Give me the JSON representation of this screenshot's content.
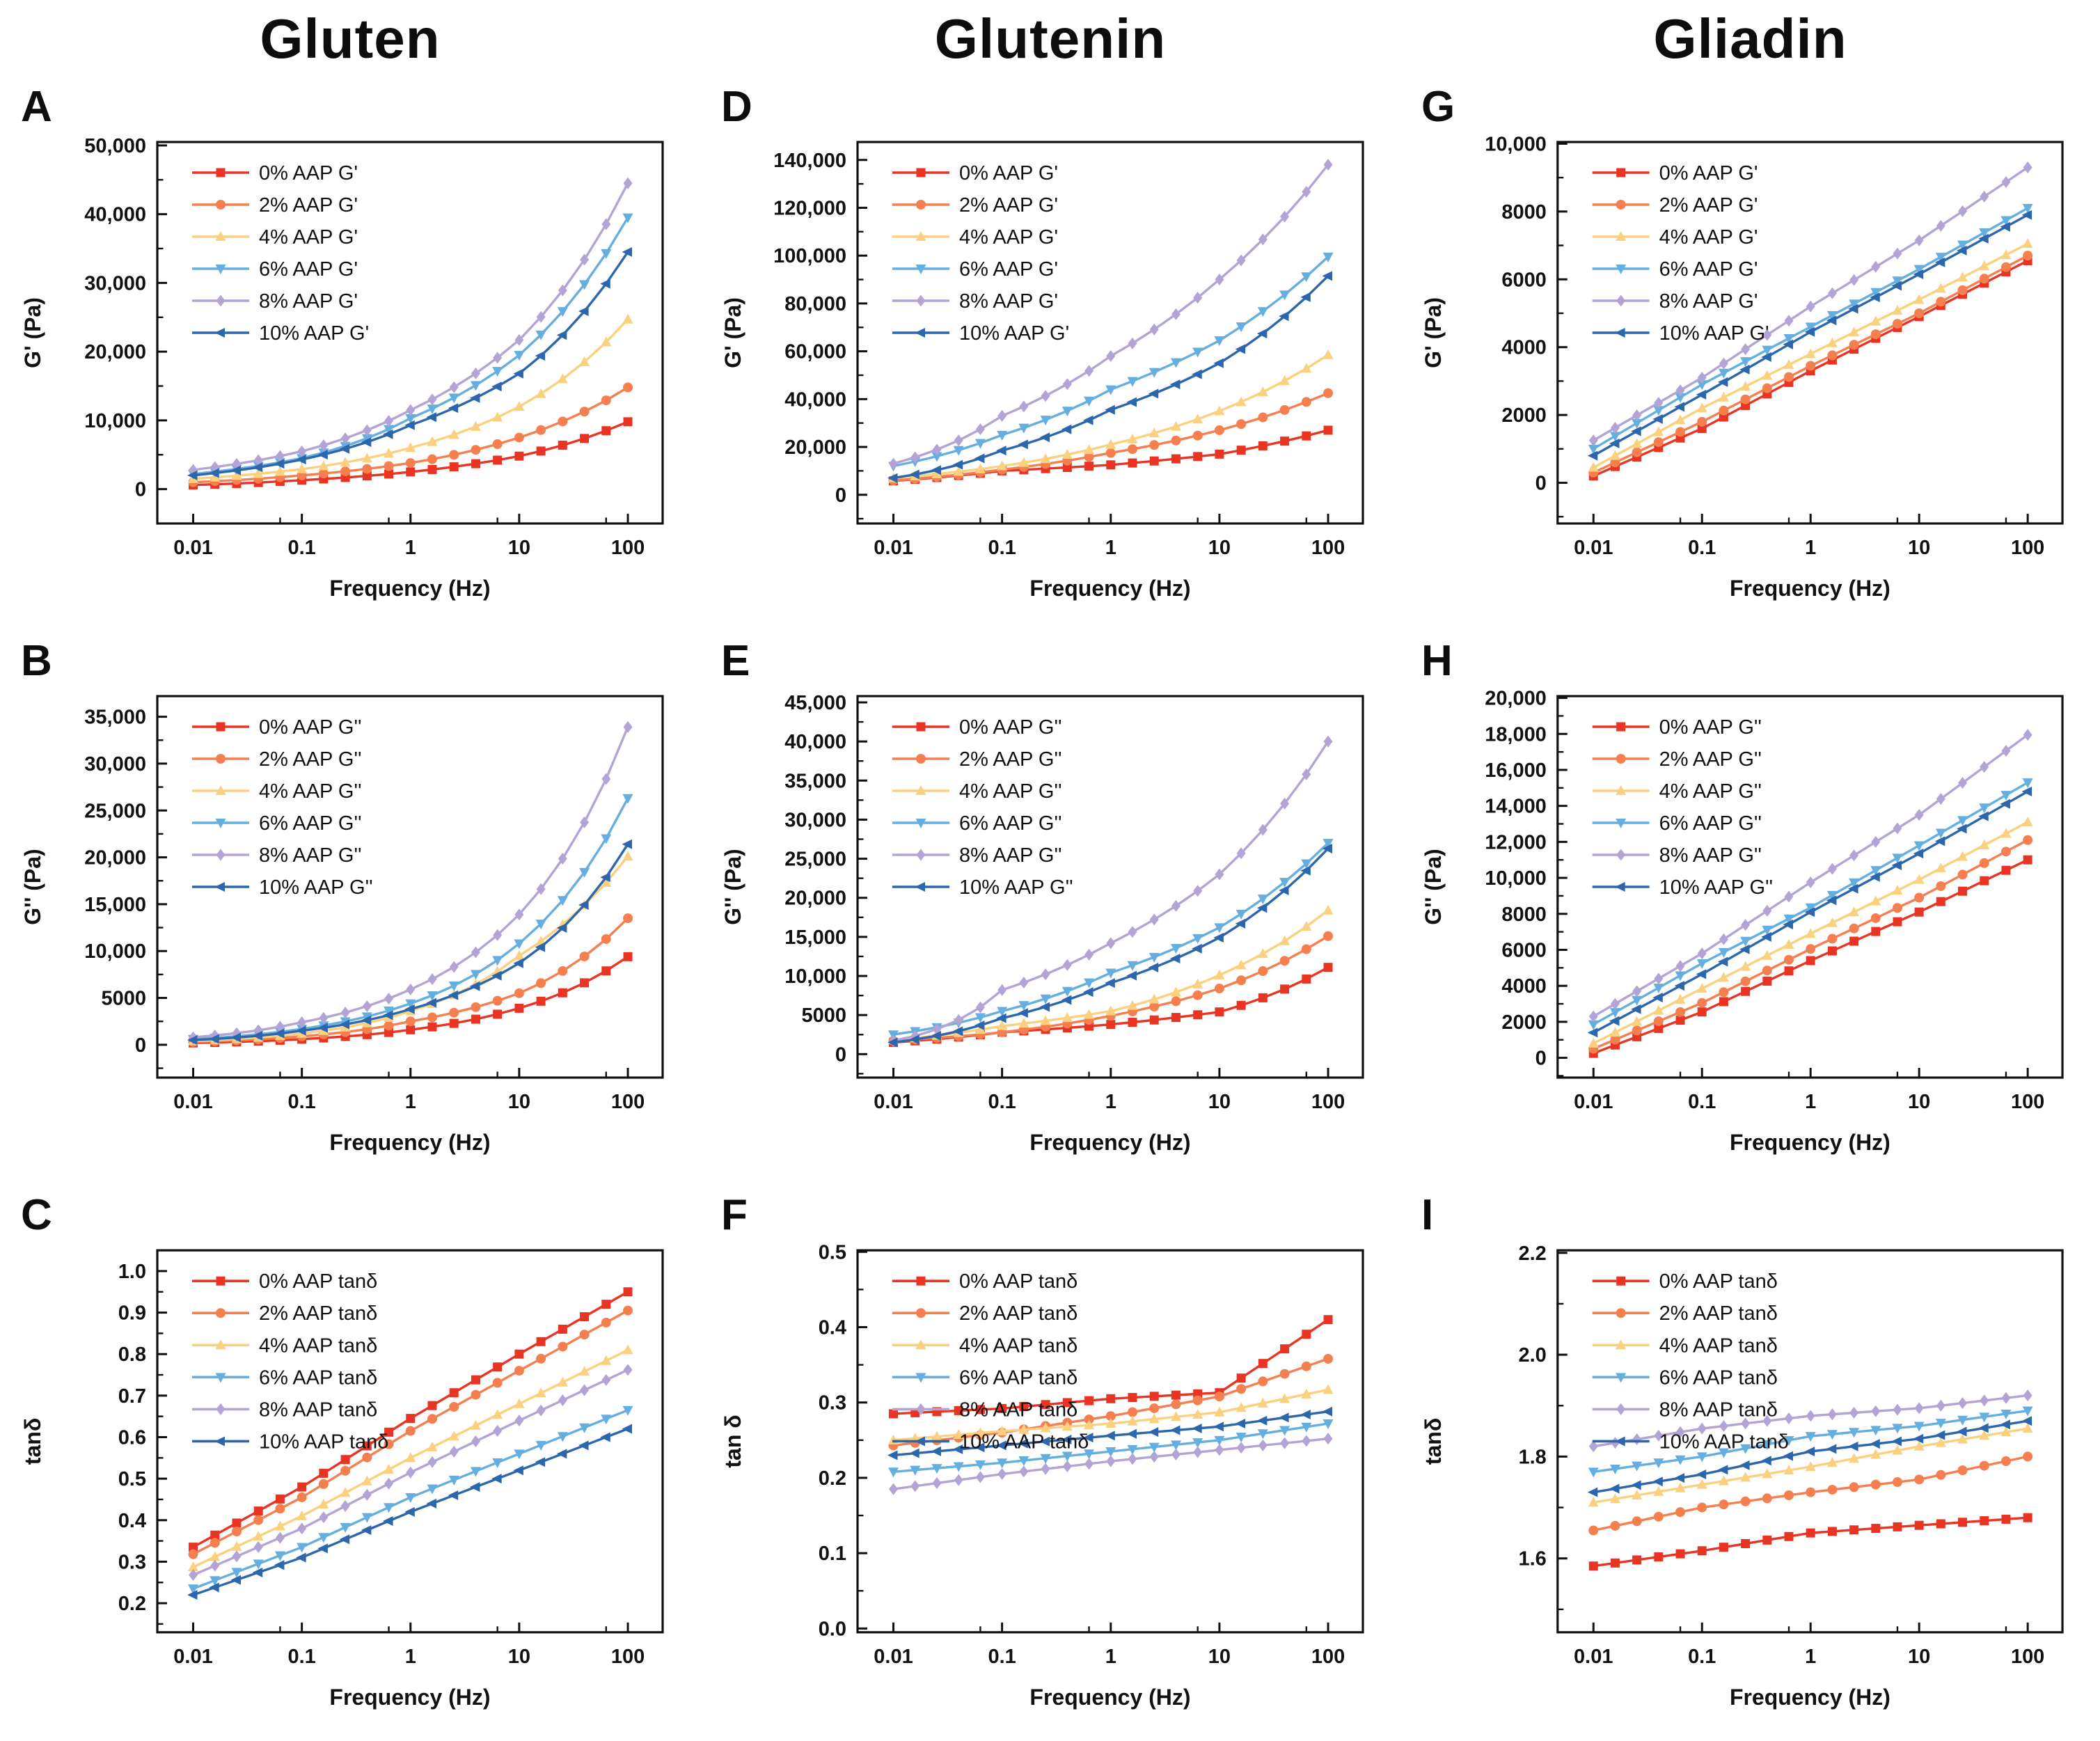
{
  "figure": {
    "columns": [
      "Gluten",
      "Glutenin",
      "Gliadin"
    ],
    "x_axis_label": "Frequency (Hz)",
    "x_tick_labels": [
      "0.01",
      "0.1",
      "1",
      "10",
      "100"
    ],
    "x_tick_values": [
      0.01,
      0.1,
      1,
      10,
      100
    ],
    "series_colors": {
      "aap_0": "#EA3423",
      "aap_2": "#F57F4F",
      "aap_4": "#FBD07E",
      "aap_6": "#65AFE0",
      "aap_8": "#B4A3D5",
      "aap_10": "#2C67AE"
    }
  },
  "chart_data": [
    {
      "panel": "A",
      "group": "Gluten",
      "type": "line",
      "xscale": "log",
      "xlabel": "Frequency (Hz)",
      "ylabel": "G' (Pa)",
      "x_anchors_hz": [
        0.01,
        0.1,
        1,
        10,
        100
      ],
      "markers_per_decade": 5,
      "ylim": [
        -5000,
        50500
      ],
      "yticks": [
        0,
        10000,
        20000,
        30000,
        40000,
        50000
      ],
      "ytick_labels": [
        "0",
        "10,000",
        "20,000",
        "30,000",
        "40,000",
        "50,000"
      ],
      "yinterp": "log",
      "series": [
        {
          "label": "0% AAP G'",
          "color": "#EA3423",
          "marker": "square",
          "values": [
            600,
            1300,
            2500,
            4800,
            9800
          ]
        },
        {
          "label": "2% AAP G'",
          "color": "#F57F4F",
          "marker": "circle",
          "values": [
            1000,
            2000,
            3800,
            7500,
            14800
          ]
        },
        {
          "label": "4% AAP G'",
          "color": "#FBD07E",
          "marker": "triangle-up",
          "values": [
            1500,
            2900,
            6000,
            12000,
            24700
          ]
        },
        {
          "label": "6% AAP G'",
          "color": "#65AFE0",
          "marker": "triangle-down",
          "values": [
            2200,
            4500,
            10300,
            19500,
            39500
          ]
        },
        {
          "label": "8% AAP G'",
          "color": "#B4A3D5",
          "marker": "diamond",
          "values": [
            2800,
            5500,
            11500,
            21700,
            44500
          ]
        },
        {
          "label": "10% AAP G'",
          "color": "#2C67AE",
          "marker": "triangle-left",
          "values": [
            2000,
            4300,
            9300,
            16800,
            34500
          ]
        }
      ]
    },
    {
      "panel": "B",
      "group": "Gluten",
      "type": "line",
      "xscale": "log",
      "xlabel": "Frequency (Hz)",
      "ylabel": "G'' (Pa)",
      "x_anchors_hz": [
        0.01,
        0.1,
        1,
        10,
        100
      ],
      "markers_per_decade": 5,
      "ylim": [
        -3500,
        37200
      ],
      "yticks": [
        0,
        5000,
        10000,
        15000,
        20000,
        25000,
        30000,
        35000
      ],
      "ytick_labels": [
        "0",
        "5000",
        "10,000",
        "15,000",
        "20,000",
        "25,000",
        "30,000",
        "35,000"
      ],
      "yinterp": "log",
      "series": [
        {
          "label": "0% AAP G''",
          "color": "#EA3423",
          "marker": "square",
          "values": [
            200,
            600,
            1600,
            3900,
            9400
          ]
        },
        {
          "label": "2% AAP G''",
          "color": "#F57F4F",
          "marker": "circle",
          "values": [
            300,
            900,
            2500,
            5500,
            13500
          ]
        },
        {
          "label": "4% AAP G''",
          "color": "#FBD07E",
          "marker": "triangle-up",
          "values": [
            400,
            1200,
            3600,
            9500,
            20100
          ]
        },
        {
          "label": "6% AAP G''",
          "color": "#65AFE0",
          "marker": "triangle-down",
          "values": [
            600,
            1700,
            4400,
            10800,
            26300
          ]
        },
        {
          "label": "8% AAP G''",
          "color": "#B4A3D5",
          "marker": "diamond",
          "values": [
            800,
            2400,
            5900,
            13900,
            33900
          ]
        },
        {
          "label": "10% AAP G''",
          "color": "#2C67AE",
          "marker": "triangle-left",
          "values": [
            500,
            1500,
            3800,
            8700,
            21400
          ]
        }
      ]
    },
    {
      "panel": "C",
      "group": "Gluten",
      "type": "line",
      "xscale": "log",
      "xlabel": "Frequency (Hz)",
      "ylabel": "tanδ",
      "x_anchors_hz": [
        0.01,
        0.1,
        1,
        10,
        100
      ],
      "markers_per_decade": 5,
      "ylim": [
        0.13,
        1.05
      ],
      "yticks": [
        0.2,
        0.3,
        0.4,
        0.5,
        0.6,
        0.7,
        0.8,
        0.9,
        1.0
      ],
      "ytick_labels": [
        "0.2",
        "0.3",
        "0.4",
        "0.5",
        "0.6",
        "0.7",
        "0.8",
        "0.9",
        "1.0"
      ],
      "yinterp": "linear",
      "series": [
        {
          "label": "0% AAP tanδ",
          "color": "#EA3423",
          "marker": "square",
          "values": [
            0.335,
            0.48,
            0.645,
            0.8,
            0.95
          ]
        },
        {
          "label": "2% AAP tanδ",
          "color": "#F57F4F",
          "marker": "circle",
          "values": [
            0.318,
            0.455,
            0.615,
            0.76,
            0.905
          ]
        },
        {
          "label": "4% AAP tanδ",
          "color": "#FBD07E",
          "marker": "triangle-up",
          "values": [
            0.287,
            0.41,
            0.55,
            0.68,
            0.81
          ]
        },
        {
          "label": "6% AAP tanδ",
          "color": "#65AFE0",
          "marker": "triangle-down",
          "values": [
            0.235,
            0.335,
            0.455,
            0.56,
            0.665
          ]
        },
        {
          "label": "8% AAP tanδ",
          "color": "#B4A3D5",
          "marker": "diamond",
          "values": [
            0.268,
            0.38,
            0.515,
            0.64,
            0.762
          ]
        },
        {
          "label": "10% AAP tanδ",
          "color": "#2C67AE",
          "marker": "triangle-left",
          "values": [
            0.22,
            0.31,
            0.42,
            0.52,
            0.62
          ]
        }
      ]
    },
    {
      "panel": "D",
      "group": "Glutenin",
      "type": "line",
      "xscale": "log",
      "xlabel": "Frequency (Hz)",
      "ylabel": "G' (Pa)",
      "x_anchors_hz": [
        0.01,
        0.1,
        1,
        10,
        100
      ],
      "markers_per_decade": 5,
      "ylim": [
        -12000,
        147500
      ],
      "yticks": [
        0,
        20000,
        40000,
        60000,
        80000,
        100000,
        120000,
        140000
      ],
      "ytick_labels": [
        "0",
        "20,000",
        "40,000",
        "60,000",
        "80,000",
        "100,000",
        "120,000",
        "140,000"
      ],
      "yinterp": "log",
      "series": [
        {
          "label": "0% AAP G'",
          "color": "#EA3423",
          "marker": "square",
          "values": [
            5800,
            10000,
            12500,
            17000,
            27000
          ]
        },
        {
          "label": "2% AAP G'",
          "color": "#F57F4F",
          "marker": "circle",
          "values": [
            6000,
            10500,
            17500,
            27000,
            42500
          ]
        },
        {
          "label": "4% AAP G'",
          "color": "#FBD07E",
          "marker": "triangle-up",
          "values": [
            7000,
            12000,
            21000,
            35000,
            58500
          ]
        },
        {
          "label": "6% AAP G'",
          "color": "#65AFE0",
          "marker": "triangle-down",
          "values": [
            12000,
            25000,
            44000,
            64500,
            99500
          ]
        },
        {
          "label": "8% AAP G'",
          "color": "#B4A3D5",
          "marker": "diamond",
          "values": [
            13000,
            33000,
            58000,
            90000,
            138000
          ]
        },
        {
          "label": "10% AAP G'",
          "color": "#2C67AE",
          "marker": "triangle-left",
          "values": [
            7000,
            18500,
            35500,
            55000,
            91500
          ]
        }
      ]
    },
    {
      "panel": "E",
      "group": "Glutenin",
      "type": "line",
      "xscale": "log",
      "xlabel": "Frequency (Hz)",
      "ylabel": "G'' (Pa)",
      "x_anchors_hz": [
        0.01,
        0.1,
        1,
        10,
        100
      ],
      "markers_per_decade": 5,
      "ylim": [
        -3000,
        45800
      ],
      "yticks": [
        0,
        5000,
        10000,
        15000,
        20000,
        25000,
        30000,
        35000,
        40000,
        45000
      ],
      "ytick_labels": [
        "0",
        "5000",
        "10,000",
        "15,000",
        "20,000",
        "25,000",
        "30,000",
        "35,000",
        "40,000",
        "45,000"
      ],
      "yinterp": "log",
      "series": [
        {
          "label": "0% AAP G''",
          "color": "#EA3423",
          "marker": "square",
          "values": [
            1500,
            2800,
            3800,
            5400,
            11100
          ]
        },
        {
          "label": "2% AAP G''",
          "color": "#F57F4F",
          "marker": "circle",
          "values": [
            1700,
            2800,
            4900,
            8400,
            15100
          ]
        },
        {
          "label": "4% AAP G''",
          "color": "#FBD07E",
          "marker": "triangle-up",
          "values": [
            1800,
            3600,
            5500,
            10100,
            18400
          ]
        },
        {
          "label": "6% AAP G''",
          "color": "#65AFE0",
          "marker": "triangle-down",
          "values": [
            2500,
            5500,
            10400,
            16200,
            27000
          ]
        },
        {
          "label": "8% AAP G''",
          "color": "#B4A3D5",
          "marker": "diamond",
          "values": [
            1700,
            8200,
            14200,
            23000,
            40000
          ]
        },
        {
          "label": "10% AAP G''",
          "color": "#2C67AE",
          "marker": "triangle-left",
          "values": [
            1500,
            4600,
            9100,
            14900,
            26300
          ]
        }
      ]
    },
    {
      "panel": "F",
      "group": "Glutenin",
      "type": "line",
      "xscale": "log",
      "xlabel": "Frequency (Hz)",
      "ylabel": "tan δ",
      "x_anchors_hz": [
        0.01,
        0.1,
        1,
        10,
        100
      ],
      "markers_per_decade": 5,
      "ylim": [
        -0.005,
        0.502
      ],
      "yticks": [
        0.0,
        0.1,
        0.2,
        0.3,
        0.4,
        0.5
      ],
      "ytick_labels": [
        "0.0",
        "0.1",
        "0.2",
        "0.3",
        "0.4",
        "0.5"
      ],
      "yinterp": "linear",
      "series": [
        {
          "label": "0% AAP tanδ",
          "color": "#EA3423",
          "marker": "square",
          "values": [
            0.285,
            0.292,
            0.305,
            0.313,
            0.41
          ]
        },
        {
          "label": "2% AAP tanδ",
          "color": "#F57F4F",
          "marker": "circle",
          "values": [
            0.243,
            0.26,
            0.282,
            0.308,
            0.358
          ]
        },
        {
          "label": "4% AAP tanδ",
          "color": "#FBD07E",
          "marker": "triangle-up",
          "values": [
            0.25,
            0.262,
            0.272,
            0.287,
            0.317
          ]
        },
        {
          "label": "6% AAP tanδ",
          "color": "#65AFE0",
          "marker": "triangle-down",
          "values": [
            0.208,
            0.22,
            0.235,
            0.25,
            0.272
          ]
        },
        {
          "label": "8% AAP tanδ",
          "color": "#B4A3D5",
          "marker": "diamond",
          "values": [
            0.185,
            0.205,
            0.222,
            0.237,
            0.252
          ]
        },
        {
          "label": "10% AAP tanδ",
          "color": "#2C67AE",
          "marker": "triangle-left",
          "values": [
            0.23,
            0.243,
            0.256,
            0.268,
            0.288
          ]
        }
      ]
    },
    {
      "panel": "G",
      "group": "Gliadin",
      "type": "line",
      "xscale": "log",
      "xlabel": "Frequency (Hz)",
      "ylabel": "G' (Pa)",
      "x_anchors_hz": [
        0.01,
        0.1,
        1,
        10,
        100
      ],
      "markers_per_decade": 5,
      "ylim": [
        -1200,
        10050
      ],
      "yticks": [
        0,
        2000,
        4000,
        6000,
        8000,
        10000
      ],
      "ytick_labels": [
        "0",
        "2000",
        "4000",
        "6000",
        "8000",
        "10,000"
      ],
      "yinterp": "linear",
      "series": [
        {
          "label": "0% AAP G'",
          "color": "#EA3423",
          "marker": "square",
          "values": [
            200,
            1600,
            3300,
            4900,
            6550
          ]
        },
        {
          "label": "2% AAP G'",
          "color": "#F57F4F",
          "marker": "circle",
          "values": [
            300,
            1800,
            3450,
            5000,
            6700
          ]
        },
        {
          "label": "4% AAP G'",
          "color": "#FBD07E",
          "marker": "triangle-up",
          "values": [
            450,
            2200,
            3800,
            5400,
            7050
          ]
        },
        {
          "label": "6% AAP G'",
          "color": "#65AFE0",
          "marker": "triangle-down",
          "values": [
            1000,
            2900,
            4600,
            6300,
            8100
          ]
        },
        {
          "label": "8% AAP G'",
          "color": "#B4A3D5",
          "marker": "diamond",
          "values": [
            1250,
            3100,
            5200,
            7150,
            9300
          ]
        },
        {
          "label": "10% AAP G'",
          "color": "#2C67AE",
          "marker": "triangle-left",
          "values": [
            800,
            2600,
            4450,
            6150,
            7900
          ]
        }
      ]
    },
    {
      "panel": "H",
      "group": "Gliadin",
      "type": "line",
      "xscale": "log",
      "xlabel": "Frequency (Hz)",
      "ylabel": "G'' (Pa)",
      "x_anchors_hz": [
        0.01,
        0.1,
        1,
        10,
        100
      ],
      "markers_per_decade": 5,
      "ylim": [
        -1100,
        20100
      ],
      "yticks": [
        0,
        2000,
        4000,
        6000,
        8000,
        10000,
        12000,
        14000,
        16000,
        18000,
        20000
      ],
      "ytick_labels": [
        "0",
        "2000",
        "4000",
        "6000",
        "8000",
        "10,000",
        "12,000",
        "14,000",
        "16,000",
        "18,000",
        "20,000"
      ],
      "yinterp": "linear",
      "series": [
        {
          "label": "0% AAP G''",
          "color": "#EA3423",
          "marker": "square",
          "values": [
            250,
            2550,
            5400,
            8100,
            11000
          ]
        },
        {
          "label": "2% AAP G''",
          "color": "#F57F4F",
          "marker": "circle",
          "values": [
            500,
            3050,
            6050,
            8900,
            12100
          ]
        },
        {
          "label": "4% AAP G''",
          "color": "#FBD07E",
          "marker": "triangle-up",
          "values": [
            800,
            3850,
            6900,
            9900,
            13100
          ]
        },
        {
          "label": "6% AAP G''",
          "color": "#65AFE0",
          "marker": "triangle-down",
          "values": [
            1850,
            5250,
            8350,
            11800,
            15300
          ]
        },
        {
          "label": "8% AAP G''",
          "color": "#B4A3D5",
          "marker": "diamond",
          "values": [
            2300,
            5800,
            9750,
            13500,
            17950
          ]
        },
        {
          "label": "10% AAP G''",
          "color": "#2C67AE",
          "marker": "triangle-left",
          "values": [
            1400,
            4650,
            8100,
            11350,
            14800
          ]
        }
      ]
    },
    {
      "panel": "I",
      "group": "Gliadin",
      "type": "line",
      "xscale": "log",
      "xlabel": "Frequency (Hz)",
      "ylabel": "tanδ",
      "x_anchors_hz": [
        0.01,
        0.1,
        1,
        10,
        100
      ],
      "markers_per_decade": 5,
      "ylim": [
        1.455,
        2.205
      ],
      "yticks": [
        1.6,
        1.8,
        2.0,
        2.2
      ],
      "ytick_labels": [
        "1.6",
        "1.8",
        "2.0",
        "2.2"
      ],
      "yinterp": "linear",
      "series": [
        {
          "label": "0% AAP tanδ",
          "color": "#EA3423",
          "marker": "square",
          "values": [
            1.585,
            1.615,
            1.65,
            1.665,
            1.68
          ]
        },
        {
          "label": "2% AAP tanδ",
          "color": "#F57F4F",
          "marker": "circle",
          "values": [
            1.655,
            1.7,
            1.73,
            1.755,
            1.8
          ]
        },
        {
          "label": "4% AAP tanδ",
          "color": "#FBD07E",
          "marker": "triangle-up",
          "values": [
            1.71,
            1.745,
            1.78,
            1.82,
            1.855
          ]
        },
        {
          "label": "6% AAP tanδ",
          "color": "#65AFE0",
          "marker": "triangle-down",
          "values": [
            1.77,
            1.8,
            1.84,
            1.86,
            1.89
          ]
        },
        {
          "label": "8% AAP tanδ",
          "color": "#B4A3D5",
          "marker": "diamond",
          "values": [
            1.82,
            1.855,
            1.88,
            1.895,
            1.92
          ]
        },
        {
          "label": "10% AAP tanδ",
          "color": "#2C67AE",
          "marker": "triangle-left",
          "values": [
            1.73,
            1.765,
            1.81,
            1.835,
            1.87
          ]
        }
      ]
    }
  ]
}
